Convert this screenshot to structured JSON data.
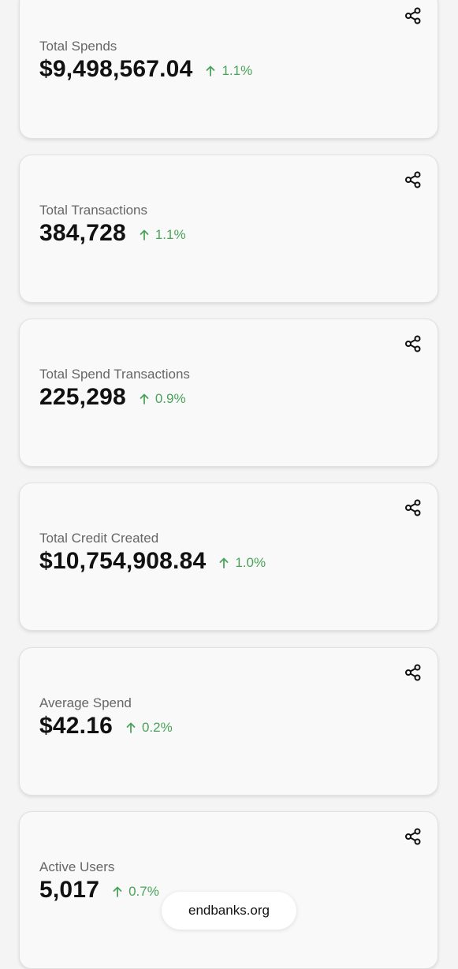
{
  "cards": [
    {
      "label": "Total Spends",
      "value": "$9,498,567.04",
      "change": "1.1%"
    },
    {
      "label": "Total Transactions",
      "value": "384,728",
      "change": "1.1%"
    },
    {
      "label": "Total Spend Transactions",
      "value": "225,298",
      "change": "0.9%"
    },
    {
      "label": "Total Credit Created",
      "value": "$10,754,908.84",
      "change": "1.0%"
    },
    {
      "label": "Average Spend",
      "value": "$42.16",
      "change": "0.2%"
    },
    {
      "label": "Active Users",
      "value": "5,017",
      "change": "0.7%"
    }
  ],
  "icons": {
    "share": "share-icon",
    "trend": "arrow-up-icon"
  },
  "colors": {
    "positive": "#4aa35a",
    "text": "#111111",
    "label": "#666666"
  },
  "footer": {
    "link": "endbanks.org"
  }
}
